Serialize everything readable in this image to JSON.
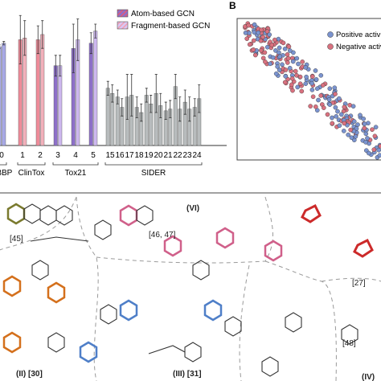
{
  "chart_data": [
    {
      "type": "bar",
      "categories": [
        "0",
        "1",
        "2",
        "3",
        "4",
        "5",
        "15",
        "16",
        "17",
        "18",
        "19",
        "20",
        "21",
        "22",
        "23",
        "24"
      ],
      "group_labels": [
        {
          "name": "BBBP",
          "categories": [
            "0"
          ]
        },
        {
          "name": "ClinTox",
          "categories": [
            "1",
            "2"
          ]
        },
        {
          "name": "Tox21",
          "categories": [
            "3",
            "4",
            "5"
          ]
        },
        {
          "name": "SIDER",
          "categories": [
            "15",
            "16",
            "17",
            "18",
            "19",
            "20",
            "21",
            "22",
            "23",
            "24"
          ]
        }
      ],
      "legend": [
        "Atom-based GCN",
        "Fragment-based GCN"
      ],
      "series": [
        {
          "name": "Atom-based GCN",
          "values": [
            0.87,
            0.91,
            0.91,
            0.76,
            0.86,
            0.89,
            0.63,
            0.58,
            0.58,
            0.52,
            0.59,
            0.6,
            0.5,
            0.64,
            0.55,
            0.52
          ],
          "errors": [
            0.01,
            0.14,
            0.08,
            0.06,
            0.14,
            0.06,
            0.04,
            0.04,
            0.13,
            0.06,
            0.04,
            0.11,
            0.05,
            0.07,
            0.07,
            0.05
          ]
        },
        {
          "name": "Fragment-based GCN",
          "values": [
            0.89,
            0.92,
            0.94,
            0.76,
            0.91,
            0.96,
            0.6,
            0.52,
            0.59,
            0.49,
            0.54,
            0.53,
            0.51,
            0.51,
            0.51,
            0.57
          ],
          "errors": [
            0.01,
            0.1,
            0.08,
            0.06,
            0.12,
            0.04,
            0.05,
            0.05,
            0.12,
            0.05,
            0.05,
            0.07,
            0.05,
            0.07,
            0.07,
            0.08
          ]
        }
      ],
      "ylim": [
        0.3,
        1.0
      ],
      "grid": false,
      "legend_placement": "top-center",
      "colors": {
        "atom": "#8d6fc9",
        "atom_stripe": "#e05a7a",
        "frag": "#cdb8ef",
        "frag_stripe": "#f0a0b4",
        "gray": "#b8bcbd",
        "bbbp": "#a7a8e6",
        "clintox": "#ef8b99",
        "clintox_light": "#f2b0ba"
      }
    },
    {
      "type": "scatter",
      "panel_label": "B",
      "legend": [
        "Positive activ",
        "Negative activ"
      ],
      "legend_placement": "top-right",
      "colors": {
        "positive": "#7a93cf",
        "negative": "#d9717f"
      }
    }
  ],
  "panel_c": {
    "references": [
      "[45]",
      "[46, 47]",
      "(VI)",
      "[27]",
      "(II) [30]",
      "(III)  [31]",
      "[48]",
      "(IV)"
    ]
  }
}
